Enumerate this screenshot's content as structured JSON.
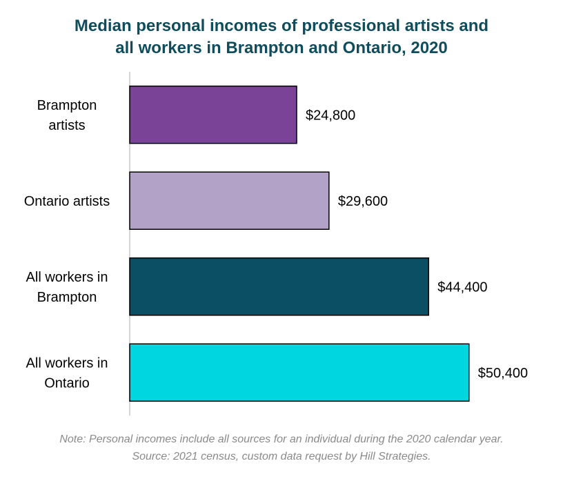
{
  "chart_data": {
    "type": "bar",
    "orientation": "horizontal",
    "title_lines": [
      "Median personal incomes of professional artists and",
      "all workers in Brampton and Ontario, 2020"
    ],
    "categories": [
      [
        "Brampton",
        "artists"
      ],
      [
        "Ontario artists"
      ],
      [
        "All workers in",
        "Brampton"
      ],
      [
        "All workers in",
        "Ontario"
      ]
    ],
    "values": [
      24800,
      29600,
      44400,
      50400
    ],
    "value_labels": [
      "$24,800",
      "$29,600",
      "$44,400",
      "$50,400"
    ],
    "colors": [
      "#7b4397",
      "#b3a2c8",
      "#0a4f63",
      "#00d6e0"
    ],
    "xlim": [
      0,
      56000
    ],
    "grid": false,
    "legend": "none"
  },
  "notes": {
    "line1": "Note: Personal incomes include all sources for an individual during the 2020 calendar year.",
    "line2": "Source: 2021 census, custom data request by Hill Strategies."
  }
}
